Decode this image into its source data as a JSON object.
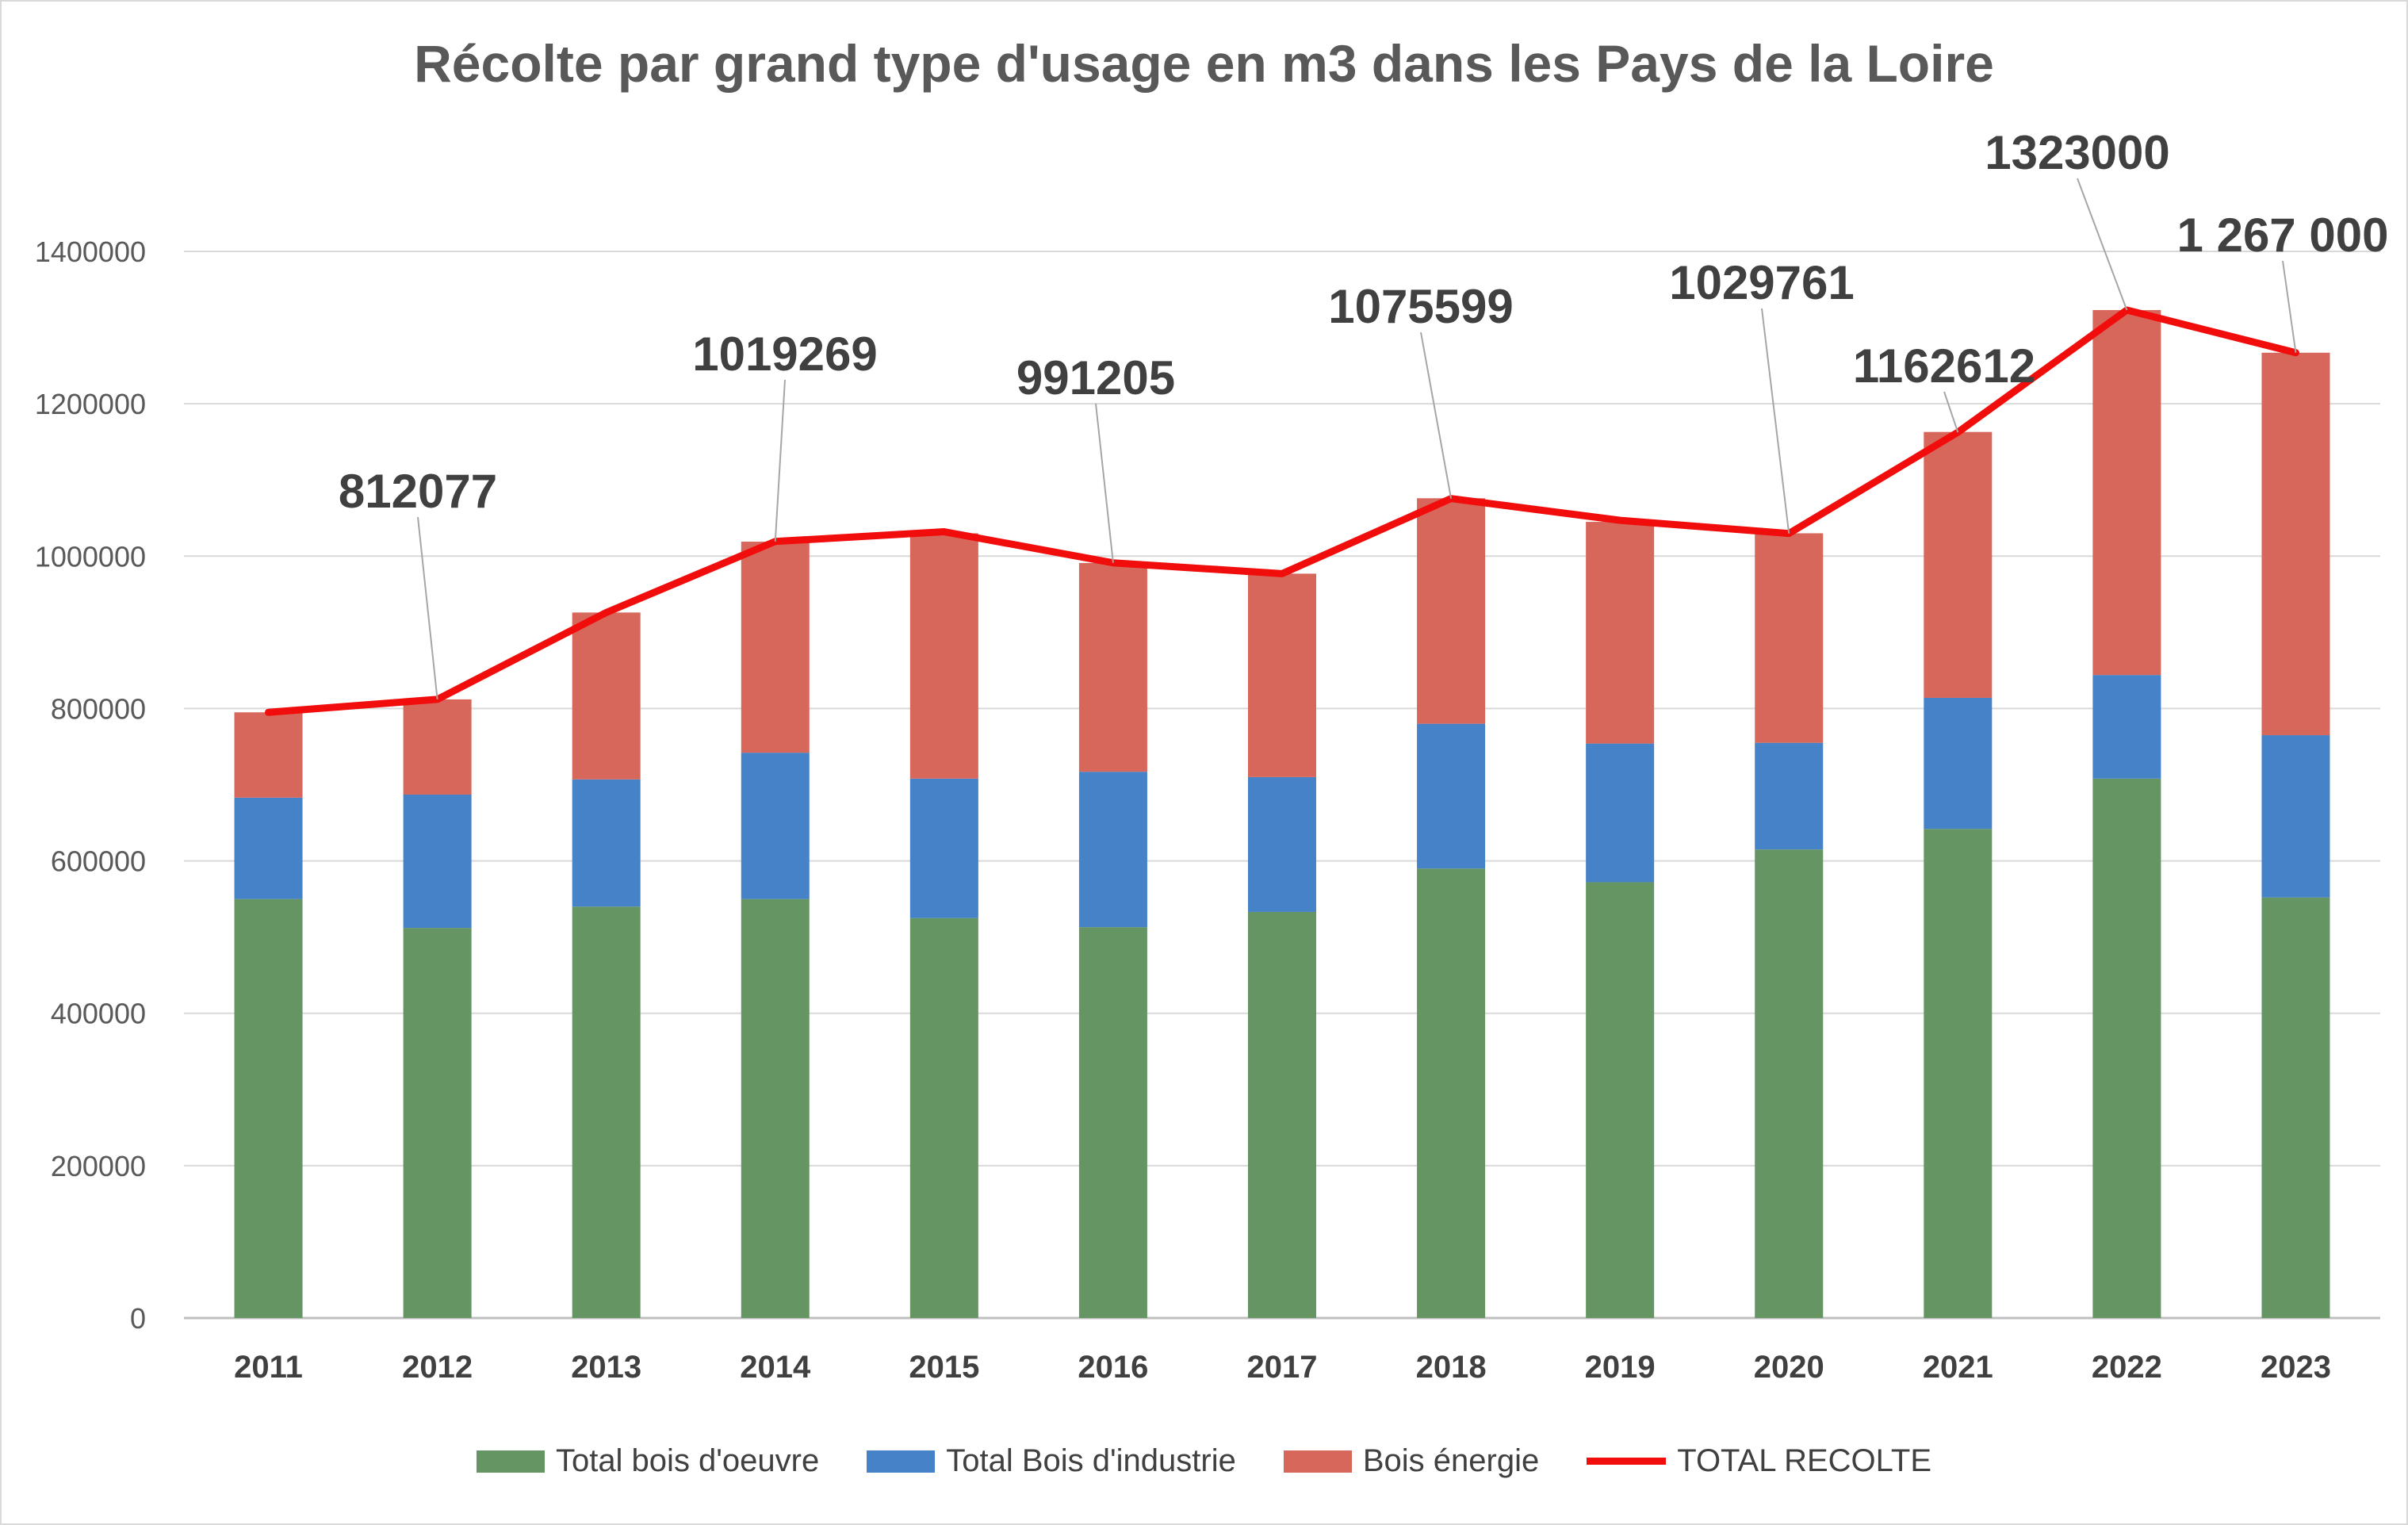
{
  "chart_data": {
    "type": "bar",
    "stacked": true,
    "title": "Récolte par grand type d'usage en m3 dans les Pays de la Loire",
    "xlabel": "",
    "ylabel": "",
    "ylim": [
      0,
      1400000
    ],
    "yticks": [
      "0",
      "200000",
      "400000",
      "600000",
      "800000",
      "1000000",
      "1200000",
      "1400000"
    ],
    "grid": true,
    "legend_position": "bottom",
    "categories": [
      "2011",
      "2012",
      "2013",
      "2014",
      "2015",
      "2016",
      "2017",
      "2018",
      "2019",
      "2020",
      "2021",
      "2022",
      "2023"
    ],
    "series": [
      {
        "name": "Total bois d'oeuvre",
        "type": "bar",
        "color": "#659563",
        "values": [
          550000,
          512000,
          540000,
          550000,
          525000,
          513000,
          533000,
          590000,
          572000,
          615000,
          642000,
          708000,
          552000
        ]
      },
      {
        "name": "Total Bois d'industrie",
        "type": "bar",
        "color": "#4582c8",
        "values": [
          133000,
          175000,
          167000,
          192000,
          183000,
          204000,
          177000,
          190000,
          182000,
          140000,
          172000,
          136000,
          213000
        ]
      },
      {
        "name": "Bois énergie",
        "type": "bar",
        "color": "#d8675b",
        "values": [
          112000,
          125000,
          219000,
          277000,
          322000,
          274000,
          267000,
          296000,
          291000,
          275000,
          349000,
          479000,
          502000
        ]
      },
      {
        "name": "TOTAL RECOLTE",
        "type": "line",
        "color": "#f20d0d",
        "values": [
          795000,
          812077,
          926000,
          1019269,
          1032000,
          991205,
          977000,
          1075599,
          1047000,
          1029761,
          1162612,
          1323000,
          1267000
        ]
      }
    ],
    "annotations": [
      {
        "category": "2012",
        "text": "812077"
      },
      {
        "category": "2014",
        "text": "1019269"
      },
      {
        "category": "2016",
        "text": "991205"
      },
      {
        "category": "2018",
        "text": "1075599"
      },
      {
        "category": "2020",
        "text": "1029761"
      },
      {
        "category": "2021",
        "text": "1162612"
      },
      {
        "category": "2022",
        "text": "1323000"
      },
      {
        "category": "2023",
        "text": "1 267 000"
      }
    ]
  }
}
